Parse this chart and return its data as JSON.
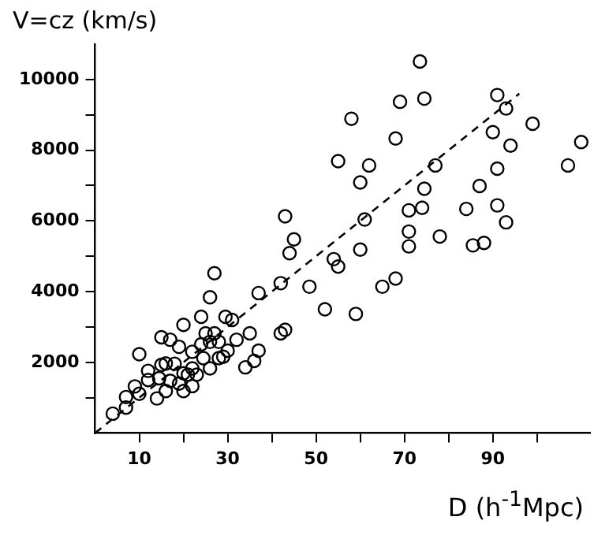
{
  "chart_data": {
    "type": "scatter",
    "xlabel": "D (h$^{-1}$Mpc)",
    "ylabel": "V=cz (km/s)",
    "xlim": [
      0,
      112
    ],
    "ylim": [
      0,
      11000
    ],
    "xticks": [
      10,
      {
        "value": 20,
        "label": null
      },
      30,
      {
        "value": 40,
        "label": null
      },
      50,
      {
        "value": 60,
        "label": null
      },
      70,
      {
        "value": 80,
        "label": null
      },
      90,
      {
        "value": 100,
        "label": null
      }
    ],
    "yticks": [
      {
        "value": 1000,
        "label": null
      },
      2000,
      {
        "value": 3000,
        "label": null
      },
      4000,
      {
        "value": 5000,
        "label": null
      },
      6000,
      {
        "value": 7000,
        "label": null
      },
      8000,
      {
        "value": 9000,
        "label": null
      },
      10000
    ],
    "grid": false,
    "legend": false,
    "series": [
      {
        "color": "#000000",
        "marker": "circle",
        "x": [
          4,
          7,
          7,
          9,
          10,
          10,
          12,
          12,
          14,
          14.5,
          15,
          16,
          15,
          17,
          16,
          17,
          18,
          19,
          19,
          20,
          20,
          20,
          21,
          22,
          22,
          22,
          23,
          24,
          24,
          24.5,
          25,
          26,
          26,
          26,
          27,
          27,
          28,
          28,
          29,
          29.5,
          30,
          31,
          32,
          34,
          35,
          36,
          37,
          37,
          42,
          42,
          43,
          43,
          44,
          45,
          48.5,
          52,
          54,
          55,
          61,
          71,
          71,
          71,
          78,
          85.5,
          88,
          93,
          60,
          65,
          68,
          59,
          73.5,
          69,
          74.5,
          91,
          93,
          58,
          68,
          99,
          90,
          94,
          110,
          55,
          62,
          77,
          107,
          60,
          91,
          74.5,
          87,
          74,
          84,
          91
        ],
        "values": [
          550,
          720,
          1020,
          1320,
          1110,
          2230,
          1760,
          1500,
          980,
          1550,
          1930,
          1970,
          2710,
          2640,
          1190,
          1480,
          1960,
          2440,
          1400,
          1190,
          1690,
          3060,
          1650,
          2300,
          1330,
          1830,
          1650,
          2510,
          3290,
          2120,
          2820,
          3840,
          2580,
          1830,
          2820,
          4520,
          2120,
          2580,
          2160,
          3290,
          2330,
          3200,
          2640,
          1860,
          2820,
          2040,
          2330,
          3960,
          4240,
          2820,
          2920,
          6130,
          5090,
          5480,
          4140,
          3500,
          4920,
          4710,
          6040,
          6300,
          5700,
          5280,
          5560,
          5310,
          5380,
          5960,
          5190,
          4140,
          4370,
          3370,
          10510,
          9370,
          9460,
          9560,
          9180,
          8890,
          8330,
          8750,
          8510,
          8130,
          8230,
          7690,
          7570,
          7570,
          7570,
          7090,
          7480,
          6910,
          6990,
          6370,
          6340,
          6440
        ]
      },
      {
        "type": "line",
        "color": "#000000",
        "line_style": "dashed",
        "marker": "none",
        "x": [
          0,
          96
        ],
        "values": [
          0,
          9600
        ]
      }
    ]
  }
}
